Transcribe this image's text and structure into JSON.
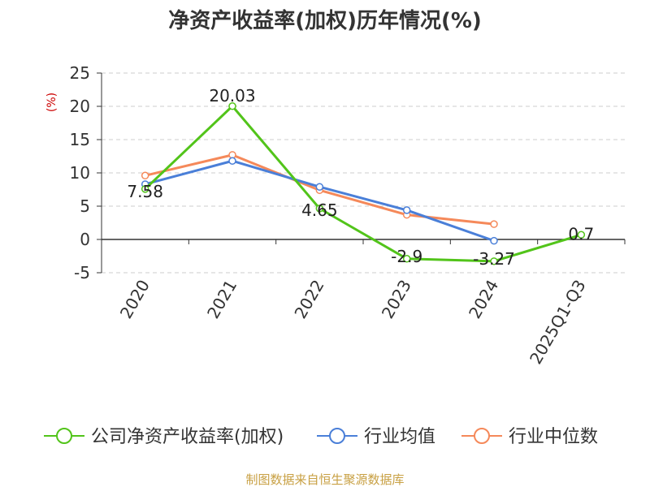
{
  "chart_data": {
    "type": "line",
    "title": "净资产收益率(加权)历年情况(%)",
    "ylabel": "(%)",
    "xlabel": "",
    "categories": [
      "2020",
      "2021",
      "2022",
      "2023",
      "2024",
      "2025Q1-Q3"
    ],
    "ylim": [
      -5,
      25
    ],
    "yticks": [
      "25",
      "20",
      "15",
      "10",
      "5",
      "0",
      "-5"
    ],
    "grid": true,
    "legend_position": "bottom",
    "series": [
      {
        "name": "公司净资产收益率(加权)",
        "color": "#52c41a",
        "values": [
          7.58,
          20.03,
          4.65,
          -2.9,
          -3.27,
          0.7
        ],
        "labels": [
          "7.58",
          "20.03",
          "4.65",
          "-2.9",
          "-3.27",
          "0.7"
        ]
      },
      {
        "name": "行业均值",
        "color": "#4a7fd8",
        "values": [
          8.3,
          11.8,
          7.9,
          4.4,
          -0.2,
          null
        ]
      },
      {
        "name": "行业中位数",
        "color": "#f5895a",
        "values": [
          9.6,
          12.7,
          7.4,
          3.7,
          2.3,
          null
        ]
      }
    ]
  },
  "source": "制图数据来自恒生聚源数据库"
}
